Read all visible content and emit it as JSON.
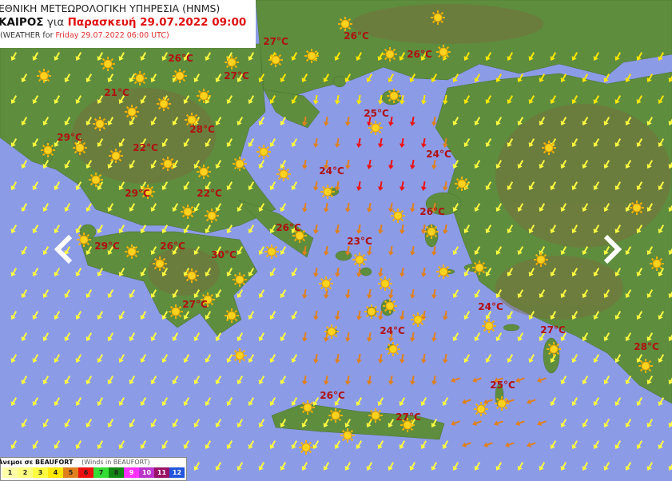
{
  "header": {
    "agency": "ΕΘΝΙΚΗ ΜΕΤΕΩΡΟΛΟΓΙΚΗ ΥΠΗΡΕΣΙΑ (HNMS)",
    "weather_label": "ΚΑΙΡΟΣ",
    "for_label": "για",
    "date_local": "Παρασκευή 29.07.2022 09:00",
    "en_prefix": "(WEATHER for",
    "en_date": "Friday 29.07.2022 06:00 UTC)"
  },
  "temperatures": [
    "27°C",
    "26°C",
    "26°C",
    "26°C",
    "27°C",
    "21°C",
    "25°C",
    "28°C",
    "29°C",
    "22°C",
    "24°C",
    "24°C",
    "29°C",
    "22°C",
    "26°C",
    "26°C",
    "23°C",
    "29°C",
    "26°C",
    "30°C",
    "27°C",
    "24°C",
    "24°C",
    "27°C",
    "28°C",
    "25°C",
    "26°C",
    "27°C"
  ],
  "icons": {
    "weather": "sun-icon",
    "wind": "wind-arrow-icon",
    "prev": "chevron-left-icon",
    "next": "chevron-right-icon"
  },
  "colors": {
    "sea": "#8c9be6",
    "land": "#5e8d3e",
    "temperature": "#b01010"
  },
  "legend": {
    "title": "Άνεμοι σε BEAUFORT",
    "subtitle": "(Winds in BEAUFORT)",
    "scale": [
      {
        "level": "1",
        "color": "#ffffa8"
      },
      {
        "level": "2",
        "color": "#ffff80"
      },
      {
        "level": "3",
        "color": "#ffff40"
      },
      {
        "level": "4",
        "color": "#ffe800"
      },
      {
        "level": "5",
        "color": "#e0801c"
      },
      {
        "level": "6",
        "color": "#ee1010"
      },
      {
        "level": "7",
        "color": "#33dd33"
      },
      {
        "level": "8",
        "color": "#128812"
      },
      {
        "level": "9",
        "color": "#ff30ff"
      },
      {
        "level": "10",
        "color": "#bb33cc"
      },
      {
        "level": "11",
        "color": "#991166"
      },
      {
        "level": "12",
        "color": "#2255dd"
      }
    ]
  }
}
